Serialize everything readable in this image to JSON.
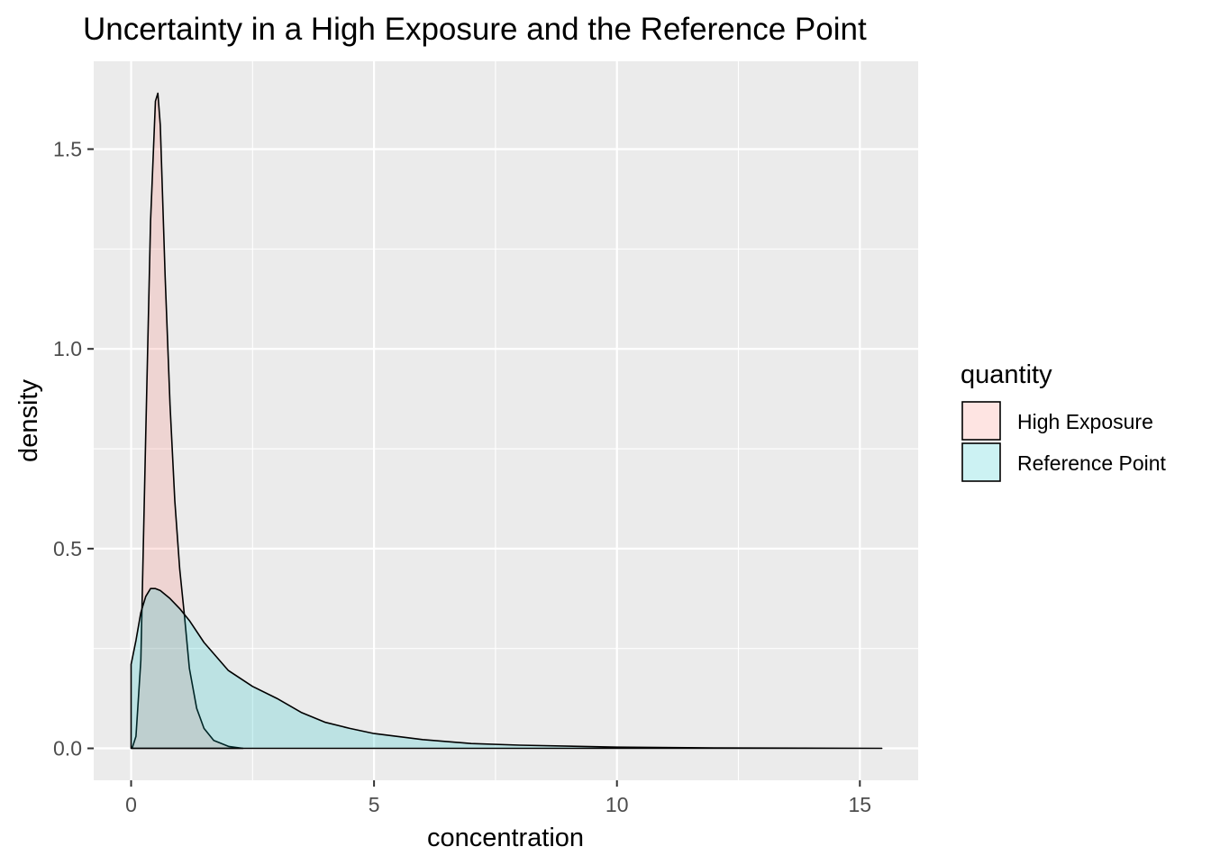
{
  "chart_data": {
    "type": "area",
    "title": "Uncertainty in a High Exposure and the Reference Point",
    "xlabel": "concentration",
    "ylabel": "density",
    "xlim": [
      -0.77,
      16.2
    ],
    "ylim": [
      -0.08,
      1.72
    ],
    "x_ticks": [
      0,
      5,
      10,
      15
    ],
    "x_tick_labels": [
      "0",
      "5",
      "10",
      "15"
    ],
    "y_ticks": [
      0.0,
      0.5,
      1.0,
      1.5
    ],
    "y_tick_labels": [
      "0.0",
      "0.5",
      "1.0",
      "1.5"
    ],
    "grid": true,
    "legend": {
      "title": "quantity",
      "position": "right",
      "entries": [
        "High Exposure",
        "Reference Point"
      ]
    },
    "series": [
      {
        "name": "High Exposure",
        "color": "#F8766D",
        "fill_alpha": 0.2,
        "x": [
          0.02,
          0.1,
          0.2,
          0.3,
          0.4,
          0.5,
          0.55,
          0.6,
          0.7,
          0.8,
          0.9,
          1.0,
          1.1,
          1.2,
          1.35,
          1.5,
          1.7,
          2.0,
          2.3
        ],
        "y": [
          0.0,
          0.03,
          0.22,
          0.78,
          1.32,
          1.62,
          1.64,
          1.56,
          1.18,
          0.86,
          0.62,
          0.45,
          0.33,
          0.2,
          0.1,
          0.05,
          0.02,
          0.005,
          0.0
        ]
      },
      {
        "name": "Reference Point",
        "color": "#00BFC4",
        "fill_alpha": 0.2,
        "x": [
          0.0,
          0.1,
          0.2,
          0.3,
          0.4,
          0.5,
          0.6,
          0.8,
          1.0,
          1.2,
          1.5,
          2.0,
          2.5,
          3.0,
          3.5,
          4.0,
          4.5,
          5.0,
          6.0,
          7.0,
          8.0,
          10.0,
          12.0,
          15.45
        ],
        "y": [
          0.21,
          0.27,
          0.34,
          0.38,
          0.4,
          0.4,
          0.395,
          0.375,
          0.35,
          0.32,
          0.265,
          0.195,
          0.155,
          0.125,
          0.09,
          0.065,
          0.05,
          0.037,
          0.022,
          0.012,
          0.008,
          0.003,
          0.001,
          0.0
        ]
      }
    ]
  }
}
